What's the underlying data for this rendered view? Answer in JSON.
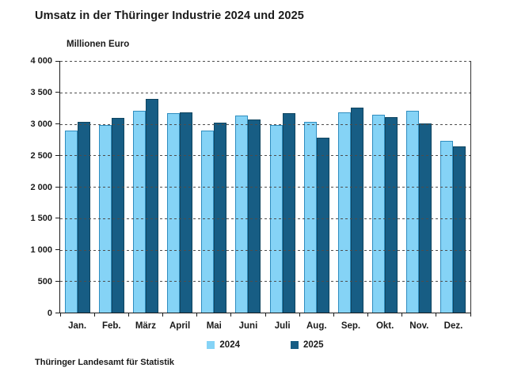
{
  "title": "Umsatz in der Thüringer Industrie 2024 und 2025",
  "axis_unit_label": "Millionen Euro",
  "footer": "Thüringer Landesamt für Statistik",
  "colors": {
    "series_2024": "#85d3f6",
    "series_2024_border": "#2f8dbf",
    "series_2025": "#175d84",
    "series_2025_border": "#0f4560",
    "gridline": "#4d4d4d",
    "axis": "#1a1a1a",
    "text": "#1a1a1a",
    "background": "#ffffff"
  },
  "legend": {
    "items": [
      {
        "label": "2024",
        "color": "#85d3f6"
      },
      {
        "label": "2025",
        "color": "#175d84"
      }
    ]
  },
  "chart_data": {
    "type": "bar",
    "title": "Umsatz in der Thüringer Industrie 2024 und 2025",
    "xlabel": "",
    "ylabel": "Millionen Euro",
    "categories": [
      "Jan.",
      "Feb.",
      "März",
      "April",
      "Mai",
      "Juni",
      "Juli",
      "Aug.",
      "Sep.",
      "Okt.",
      "Nov.",
      "Dez."
    ],
    "series": [
      {
        "name": "2024",
        "color": "#85d3f6",
        "values": [
          2890,
          2970,
          3200,
          3160,
          2890,
          3120,
          2970,
          3020,
          3170,
          3130,
          3200,
          2720
        ]
      },
      {
        "name": "2025",
        "color": "#175d84",
        "values": [
          3020,
          3080,
          3390,
          3170,
          3010,
          3060,
          3160,
          2770,
          3250,
          3100,
          3000,
          2630
        ]
      }
    ],
    "ylim": [
      0,
      4000
    ],
    "ytick_step": 500,
    "ytick_labels": [
      "0",
      "500",
      "1 000",
      "1 500",
      "2 000",
      "2 500",
      "3 000",
      "3 500",
      "4 000"
    ],
    "grid": "horizontal-dashed",
    "legend_position": "bottom"
  }
}
